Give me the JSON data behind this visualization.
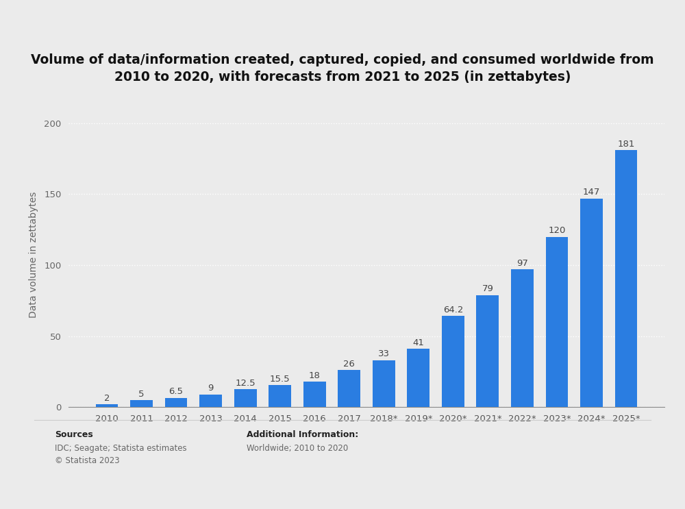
{
  "categories": [
    "2010",
    "2011",
    "2012",
    "2013",
    "2014",
    "2015",
    "2016",
    "2017",
    "2018*",
    "2019*",
    "2020*",
    "2021*",
    "2022*",
    "2023*",
    "2024*",
    "2025*"
  ],
  "values": [
    2,
    5,
    6.5,
    9,
    12.5,
    15.5,
    18,
    26,
    33,
    41,
    64.2,
    79,
    97,
    120,
    147,
    181
  ],
  "bar_color": "#2a7de1",
  "title_line1": "Volume of data/information created, captured, copied, and consumed worldwide from",
  "title_line2": "2010 to 2020, with forecasts from 2021 to 2025 (in zettabytes)",
  "ylabel": "Data volume in zettabytes",
  "ylim": [
    0,
    215
  ],
  "yticks": [
    0,
    50,
    100,
    150,
    200
  ],
  "background_color": "#ebebeb",
  "plot_background_color": "#ebebeb",
  "grid_color": "#ffffff",
  "bar_label_fontsize": 9.5,
  "axis_label_fontsize": 10,
  "title_fontsize": 13.5,
  "tick_fontsize": 9.5,
  "sources_label": "Sources",
  "sources_body": "IDC; Seagate; Statista estimates\n© Statista 2023",
  "additional_label": "Additional Information:",
  "additional_body": "Worldwide; 2010 to 2020",
  "footer_fontsize": 8.5,
  "footer_label_fontsize": 9
}
